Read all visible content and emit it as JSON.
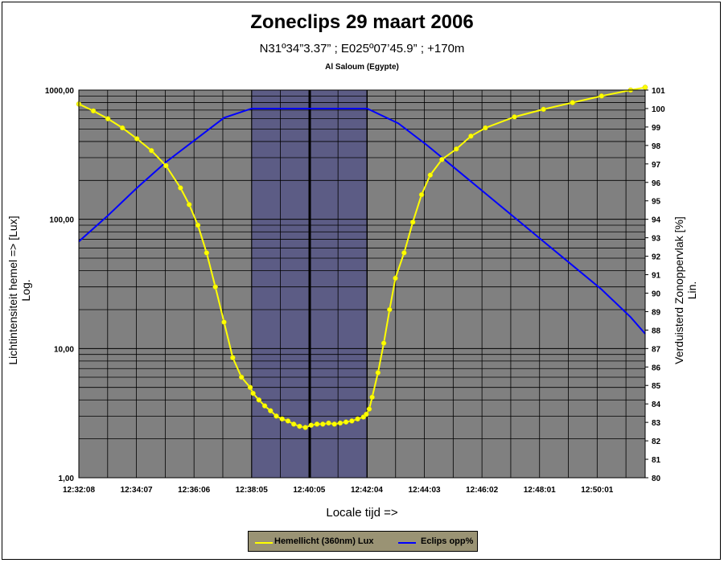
{
  "chart_data": {
    "type": "line",
    "title": "Zoneclips 29 maart 2006",
    "subtitle": "N31º34”3.37” ; E025º07’45.9” ; +170m",
    "subtitle2": "Al Saloum (Egypte)",
    "xlabel": "Locale tijd =>",
    "ylabel_left_line1": "Lichtintensiteit hemel => [Lux]",
    "ylabel_left_line2": "Log.",
    "ylabel_right_line1": "Verduisterd Zonoppervlak [%]",
    "ylabel_right_line2": "Lin.",
    "x_tick_labels": [
      "12:32:08",
      "12:34:07",
      "12:36:06",
      "12:38:05",
      "12:40:05",
      "12:42:04",
      "12:44:03",
      "12:46:02",
      "12:48:01",
      "12:50:01"
    ],
    "x_range_minutes": [
      0,
      19.5
    ],
    "y_left_scale": "log",
    "y_left_ticks": [
      "1,00",
      "10,00",
      "100,00",
      "1000,00"
    ],
    "ylim_left": [
      1,
      1000
    ],
    "y_right_ticks": [
      "80",
      "81",
      "82",
      "83",
      "84",
      "85",
      "86",
      "87",
      "88",
      "89",
      "90",
      "91",
      "92",
      "93",
      "94",
      "95",
      "96",
      "97",
      "98",
      "99",
      "100",
      "101"
    ],
    "ylim_right": [
      80,
      101
    ],
    "totality_band_minutes": [
      5.95,
      9.93
    ],
    "max_eclipse_minute": 7.95,
    "legend_position": "bottom",
    "grid": true,
    "series": [
      {
        "name": "Hemellicht (360nm) Lux",
        "color": "#ffff00",
        "axis": "left",
        "x": [
          0,
          0.5,
          1,
          1.5,
          2,
          2.5,
          3,
          3.5,
          3.8,
          4.1,
          4.4,
          4.7,
          5.0,
          5.3,
          5.6,
          5.9,
          6.0,
          6.2,
          6.4,
          6.6,
          6.8,
          7.0,
          7.2,
          7.4,
          7.6,
          7.8,
          8.0,
          8.2,
          8.4,
          8.6,
          8.8,
          9.0,
          9.2,
          9.4,
          9.6,
          9.8,
          9.9,
          10.0,
          10.1,
          10.3,
          10.5,
          10.7,
          10.9,
          11.2,
          11.5,
          11.8,
          12.1,
          12.5,
          13,
          13.5,
          14,
          15,
          16,
          17,
          18,
          19,
          19.5
        ],
        "values": [
          780,
          690,
          600,
          510,
          420,
          340,
          260,
          175,
          130,
          90,
          55,
          30,
          16,
          8.5,
          6.0,
          5.0,
          4.5,
          4.0,
          3.6,
          3.3,
          3.0,
          2.85,
          2.75,
          2.6,
          2.5,
          2.45,
          2.55,
          2.6,
          2.6,
          2.65,
          2.6,
          2.65,
          2.7,
          2.75,
          2.85,
          2.95,
          3.1,
          3.4,
          4.2,
          6.5,
          11,
          20,
          35,
          55,
          95,
          155,
          220,
          290,
          350,
          440,
          510,
          620,
          710,
          800,
          900,
          1000,
          1050
        ]
      },
      {
        "name": "Eclips opp%",
        "color": "#0000ff",
        "axis": "right",
        "x": [
          0,
          1,
          2,
          3,
          4,
          5,
          5.95,
          9.93,
          11,
          12,
          13,
          14,
          15,
          16,
          17,
          18,
          19,
          19.5
        ],
        "values": [
          92.8,
          94.2,
          95.7,
          97.1,
          98.3,
          99.5,
          100,
          100,
          99.2,
          98.0,
          96.7,
          95.4,
          94.1,
          92.8,
          91.5,
          90.2,
          88.7,
          87.8
        ]
      }
    ]
  }
}
